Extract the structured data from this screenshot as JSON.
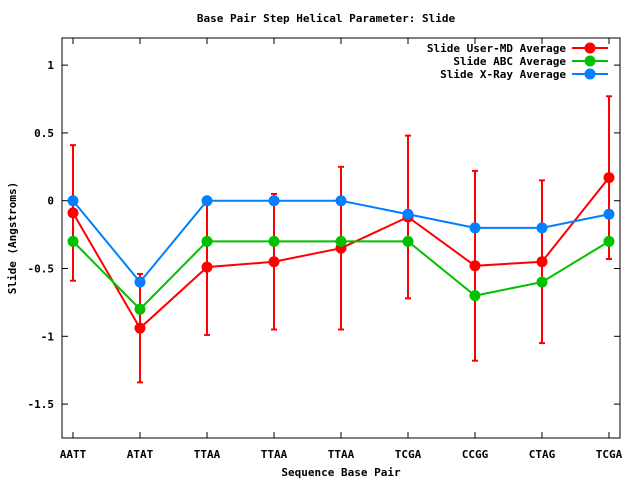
{
  "chart_data": {
    "type": "line",
    "title": "Base Pair Step Helical Parameter: Slide",
    "xlabel": "Sequence Base Pair",
    "ylabel": "Slide (Angstroms)",
    "categories": [
      "AATT",
      "ATAT",
      "TTAA",
      "TTAA",
      "TTAA",
      "TCGA",
      "CCGG",
      "CTAG",
      "TCGA"
    ],
    "ylim": [
      -1.75,
      1.2
    ],
    "yticks": [
      1,
      0.5,
      0,
      -0.5,
      -1,
      -1.5
    ],
    "ytick_labels": [
      "1",
      "0.5",
      "0",
      "-0.5",
      "-1",
      "-1.5"
    ],
    "grid": false,
    "legend_position": "top-right",
    "series": [
      {
        "name": "Slide User-MD Average",
        "color": "#ff0000",
        "values": [
          -0.09,
          -0.94,
          -0.49,
          -0.45,
          -0.35,
          -0.12,
          -0.48,
          -0.45,
          0.17
        ],
        "error": [
          0.5,
          0.4,
          0.5,
          0.5,
          0.6,
          0.6,
          0.7,
          0.6,
          0.6
        ]
      },
      {
        "name": "Slide ABC Average",
        "color": "#00c000",
        "values": [
          -0.3,
          -0.8,
          -0.3,
          -0.3,
          -0.3,
          -0.3,
          -0.7,
          -0.6,
          -0.3
        ]
      },
      {
        "name": "Slide X-Ray Average",
        "color": "#0080ff",
        "values": [
          0.0,
          -0.6,
          0.0,
          0.0,
          0.0,
          -0.1,
          -0.2,
          -0.2,
          -0.1
        ]
      }
    ]
  }
}
